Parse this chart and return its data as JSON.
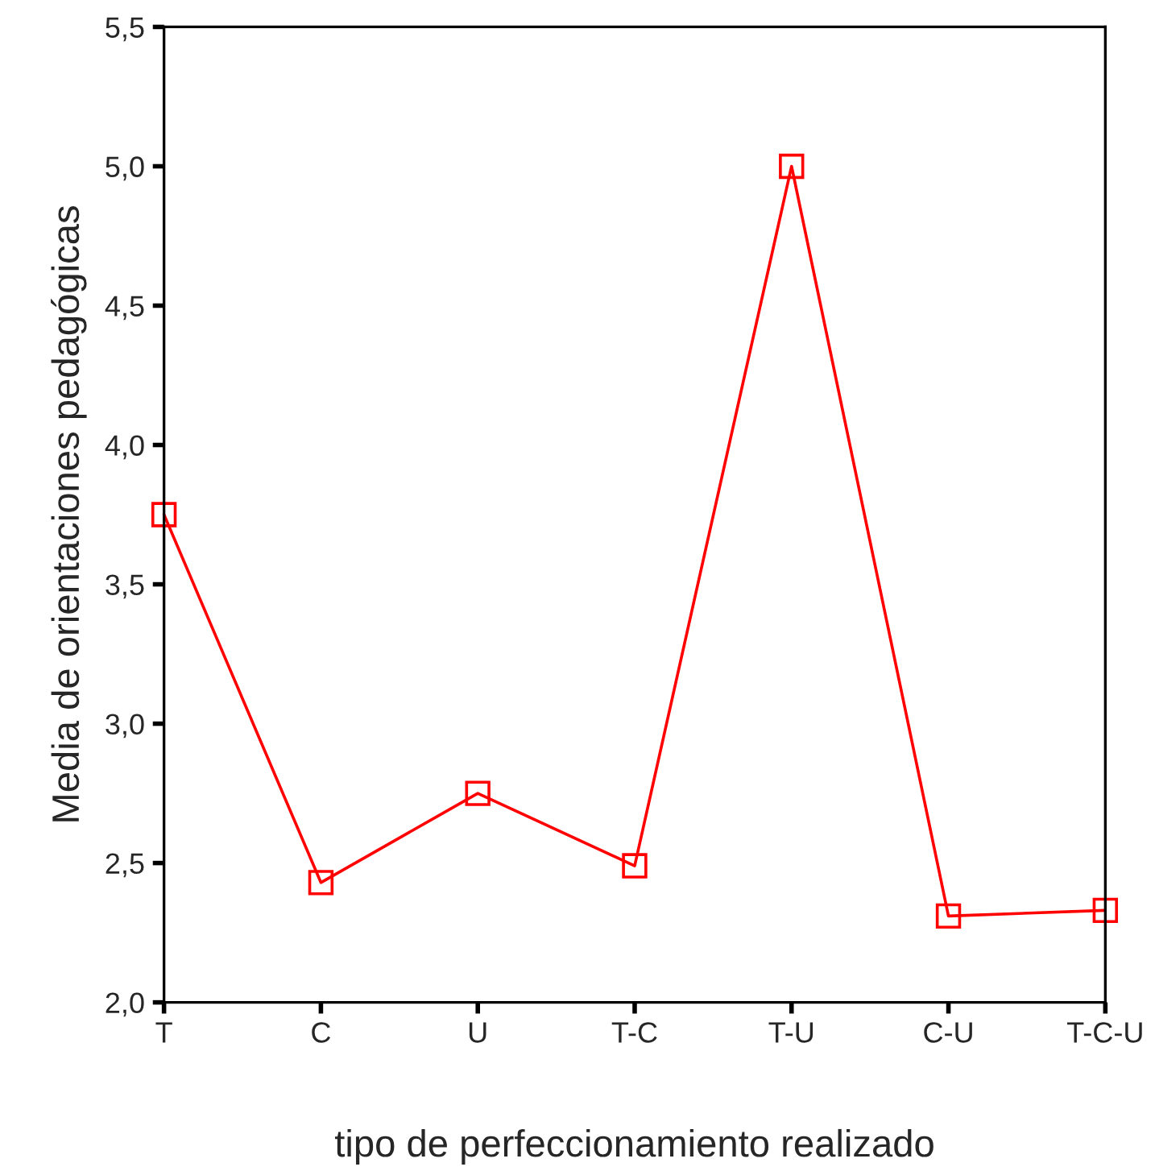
{
  "chart_data": {
    "type": "line",
    "xlabel": "tipo de perfeccionamiento realizado",
    "ylabel": "Media de orientaciones pedagógicas",
    "categories": [
      "T",
      "C",
      "U",
      "T-C",
      "T-U",
      "C-U",
      "T-C-U"
    ],
    "series": [
      {
        "color": "#ff0000",
        "values": [
          3.75,
          2.43,
          2.75,
          2.49,
          5.0,
          2.31,
          2.33
        ]
      }
    ],
    "ylim": [
      2.0,
      5.5
    ],
    "yticks": [
      {
        "value": 2.0,
        "label": "2,0"
      },
      {
        "value": 2.5,
        "label": "2,5"
      },
      {
        "value": 3.0,
        "label": "3,0"
      },
      {
        "value": 3.5,
        "label": "3,5"
      },
      {
        "value": 4.0,
        "label": "4,0"
      },
      {
        "value": 4.5,
        "label": "4,5"
      },
      {
        "value": 5.0,
        "label": "5,0"
      },
      {
        "value": 5.5,
        "label": "5,5"
      }
    ],
    "marker": "square",
    "line_style": "solid",
    "grid": false,
    "legend": false
  }
}
